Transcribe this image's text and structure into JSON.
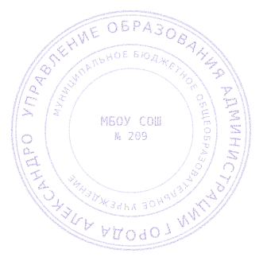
{
  "stamp": {
    "outer_text": "УПРАВЛЕНИЕ ОБРАЗОВАНИЯ АДМИНИСТРАЦИИ ГОРОДА АЛЕКСАНДРОВА",
    "inner_text": "МУНИЦИПАЛЬНОЕ БЮДЖЕТНОЕ ОБЩЕОБРАЗОВАТЕЛЬНОЕ УЧРЕЖДЕНИЕ",
    "center_line1": "МБОУ СОШ",
    "center_line2": "№ 209",
    "ink_color": "#8f74c9",
    "ink_light": "#b8a7e1"
  }
}
